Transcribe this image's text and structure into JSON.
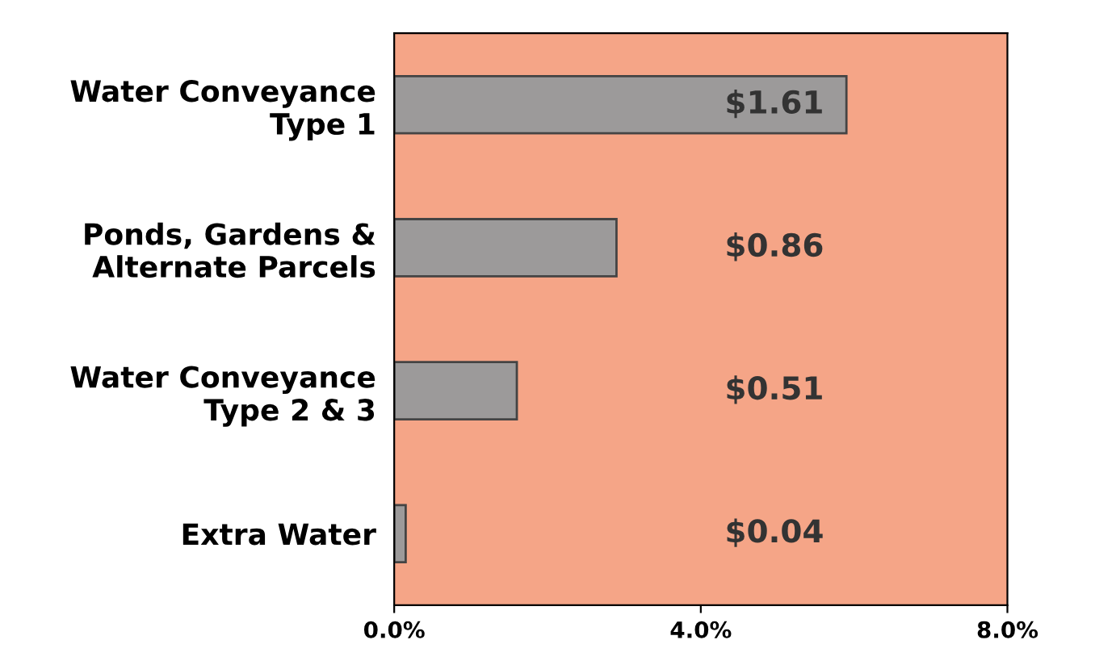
{
  "chart_data": {
    "type": "bar",
    "orientation": "horizontal",
    "categories": [
      "Water Conveyance\nType 1",
      "Ponds, Gardens &\nAlternate Parcels",
      "Water Conveyance\nType 2 & 3",
      "Extra Water"
    ],
    "values": [
      5.9,
      2.9,
      1.6,
      0.15
    ],
    "annotations": [
      "$1.61",
      "$0.86",
      "$0.51",
      "$0.04"
    ],
    "color": "#9c9a9a",
    "xlim": [
      0,
      8
    ],
    "xticks": [
      {
        "value": 0,
        "label": "0.0%"
      },
      {
        "value": 4,
        "label": "4.0%"
      },
      {
        "value": 8,
        "label": "8.0%"
      }
    ],
    "grid": false,
    "legend": false
  }
}
